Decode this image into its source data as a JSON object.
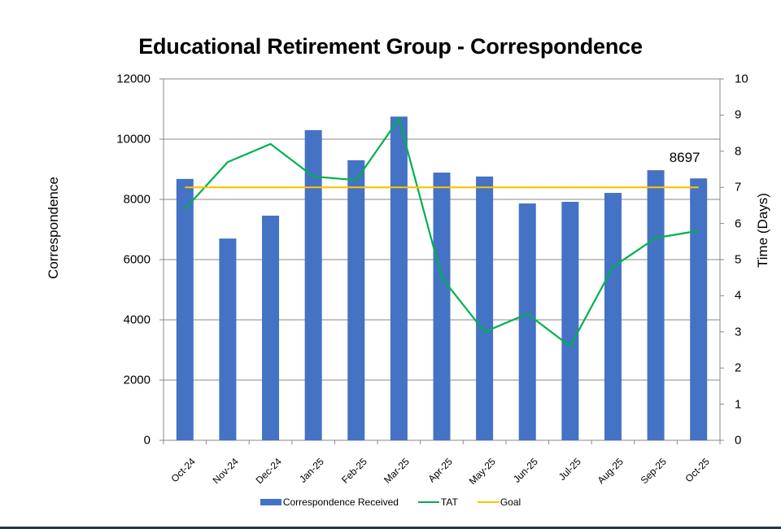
{
  "chart_data": {
    "type": "bar+line",
    "title": "Educational Retirement Group - Correspondence",
    "xlabel": "",
    "ylabel": "Correspondence",
    "y2label": "Time (Days)",
    "ylim": [
      0,
      12000
    ],
    "y2lim": [
      0,
      10
    ],
    "yticks": [
      "0",
      "2000",
      "4000",
      "6000",
      "8000",
      "10000",
      "12000"
    ],
    "y2ticks": [
      "0",
      "1",
      "2",
      "3",
      "4",
      "5",
      "6",
      "7",
      "8",
      "9",
      "10"
    ],
    "grid": true,
    "legend_position": "bottom",
    "categories": [
      "Oct-24",
      "Nov-24",
      "Dec-24",
      "Jan-25",
      "Feb-25",
      "Mar-25",
      "Apr-25",
      "May-25",
      "Jun-25",
      "Jul-25",
      "Aug-25",
      "Sep-25",
      "Oct-25"
    ],
    "series": [
      {
        "name": "Correspondence Received",
        "type": "bar",
        "axis": "left",
        "color": "#4472c4",
        "values": [
          8680,
          6700,
          7460,
          10300,
          9300,
          10750,
          8890,
          8760,
          7865,
          7920,
          8215,
          8970,
          8697
        ]
      },
      {
        "name": "TAT",
        "type": "line",
        "axis": "right",
        "color": "#00b050",
        "values": [
          6.4,
          7.7,
          8.2,
          7.3,
          7.2,
          8.9,
          4.5,
          3.0,
          3.5,
          2.6,
          4.8,
          5.6,
          5.8
        ]
      },
      {
        "name": "Goal",
        "type": "line",
        "axis": "right",
        "color": "#ffc000",
        "values": [
          7,
          7,
          7,
          7,
          7,
          7,
          7,
          7,
          7,
          7,
          7,
          7,
          7
        ]
      }
    ],
    "annotations": [
      {
        "category": "Oct-25",
        "series": "Correspondence Received",
        "text": "8697"
      }
    ]
  },
  "legend": {
    "items": [
      "Correspondence Received",
      "TAT",
      "Goal"
    ]
  }
}
